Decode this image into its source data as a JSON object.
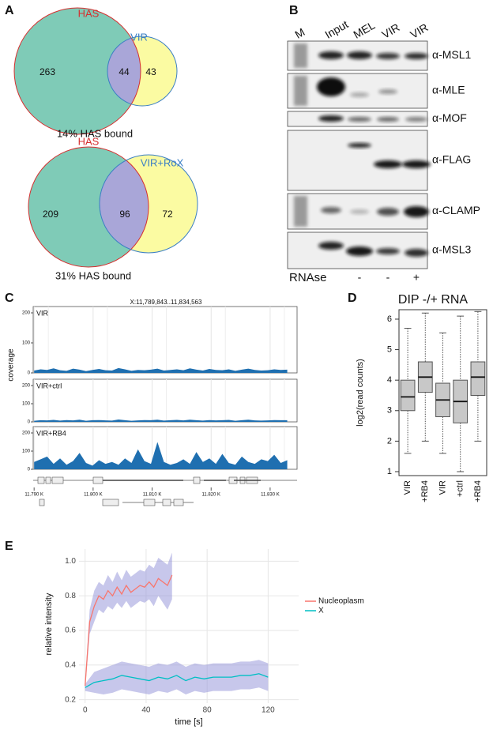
{
  "panel_a": {
    "label": "A",
    "venns": [
      {
        "set1": "HAS",
        "set2": "VIR",
        "only1": 263,
        "both": 44,
        "only2": 43,
        "caption": "14% HAS bound"
      },
      {
        "set1": "HAS",
        "set2": "VIR+RoX",
        "only1": 209,
        "both": 96,
        "only2": 72,
        "caption": "31% HAS bound"
      }
    ]
  },
  "panel_b": {
    "label": "B",
    "lanes": [
      "M",
      "Input",
      "MEL",
      "VIR",
      "VIR"
    ],
    "antibodies": [
      "α-MSL1",
      "α-MLE",
      "α-MOF",
      "α-FLAG",
      "α-CLAMP",
      "α-MSL3"
    ],
    "rnase_label": "RNAse",
    "rnase": [
      "-",
      "-",
      "+"
    ]
  },
  "chart_data": [
    {
      "type": "tracks",
      "label": "C",
      "title": "X:11,789,843..11,834,563",
      "ylabel": "coverage",
      "color": "#1f6fb0",
      "ylim": [
        0,
        200
      ],
      "yticks": [
        0,
        100,
        200
      ],
      "xlim": [
        11789843,
        11834563
      ],
      "xticks": [
        {
          "value": 11790000,
          "label": "11.790 K"
        },
        {
          "value": 11800000,
          "label": "11.800 K"
        },
        {
          "value": 11810000,
          "label": "11.810 K"
        },
        {
          "value": 11820000,
          "label": "11.820 K"
        },
        {
          "value": 11830000,
          "label": "11.830 K"
        }
      ],
      "x": [
        11790000,
        11791100,
        11792200,
        11793300,
        11794400,
        11795500,
        11796600,
        11797700,
        11798800,
        11799900,
        11801000,
        11802100,
        11803200,
        11804300,
        11805400,
        11806500,
        11807600,
        11808700,
        11809800,
        11810900,
        11812000,
        11813100,
        11814200,
        11815300,
        11816400,
        11817500,
        11818600,
        11819700,
        11820800,
        11821900,
        11823000,
        11824100,
        11825200,
        11826300,
        11827400,
        11828500,
        11829600,
        11830700,
        11831800,
        11832900
      ],
      "series": [
        {
          "name": "VIR",
          "values": [
            8,
            12,
            10,
            15,
            9,
            7,
            14,
            11,
            6,
            10,
            13,
            9,
            8,
            16,
            12,
            7,
            10,
            9,
            11,
            14,
            8,
            10,
            12,
            9,
            15,
            11,
            8,
            13,
            10,
            9,
            12,
            7,
            11,
            14,
            10,
            8,
            9,
            12,
            10,
            11
          ]
        },
        {
          "name": "VIR+ctrl",
          "values": [
            6,
            9,
            8,
            11,
            7,
            10,
            8,
            12,
            6,
            9,
            10,
            8,
            7,
            13,
            9,
            6,
            8,
            10,
            9,
            12,
            7,
            9,
            11,
            8,
            12,
            9,
            7,
            10,
            8,
            9,
            11,
            6,
            9,
            12,
            8,
            7,
            8,
            10,
            9,
            9
          ]
        },
        {
          "name": "VIR+RB4",
          "values": [
            40,
            55,
            70,
            30,
            60,
            25,
            45,
            90,
            35,
            20,
            50,
            30,
            40,
            25,
            60,
            35,
            110,
            45,
            30,
            150,
            40,
            25,
            35,
            55,
            30,
            95,
            40,
            60,
            30,
            85,
            35,
            25,
            70,
            40,
            30,
            55,
            45,
            80,
            35,
            50
          ]
        }
      ]
    },
    {
      "type": "box",
      "label": "D",
      "title": "DIP -/+ RNA",
      "ylabel": "log2(read counts)",
      "color": "#c8c8c8",
      "ylim": [
        0.87,
        6.31
      ],
      "yticks": [
        1,
        2,
        3,
        4,
        5,
        6
      ],
      "categories": [
        "VIR",
        "+RB4",
        "VIR",
        "+ctrl",
        "+RB4"
      ],
      "boxes": [
        {
          "min": 1.6,
          "q1": 3.0,
          "median": 3.45,
          "q3": 4.0,
          "max": 5.7
        },
        {
          "min": 2.0,
          "q1": 3.6,
          "median": 4.1,
          "q3": 4.6,
          "max": 6.2
        },
        {
          "min": 1.6,
          "q1": 2.8,
          "median": 3.35,
          "q3": 3.9,
          "max": 5.55
        },
        {
          "min": 1.0,
          "q1": 2.6,
          "median": 3.3,
          "q3": 4.0,
          "max": 6.1
        },
        {
          "min": 2.0,
          "q1": 3.5,
          "median": 4.1,
          "q3": 4.6,
          "max": 6.25
        }
      ]
    },
    {
      "type": "line",
      "label": "E",
      "xlabel": "time [s]",
      "ylabel": "relative intensity",
      "grid": true,
      "band_color": "#8f8fd8",
      "xlim": [
        -4,
        140
      ],
      "xticks": [
        0,
        40,
        80,
        120
      ],
      "ylim": [
        0.18,
        1.07
      ],
      "yticks": [
        0.2,
        0.4,
        0.6,
        0.8,
        {
          "value": 1,
          "label": "1.0"
        }
      ],
      "series": [
        {
          "name": "Nucleoplasm",
          "color": "#f8766d",
          "x": [
            0,
            3,
            6,
            9,
            12,
            15,
            18,
            21,
            24,
            27,
            30,
            33,
            36,
            39,
            42,
            45,
            48,
            51,
            54,
            57
          ],
          "values": [
            0.28,
            0.65,
            0.74,
            0.8,
            0.78,
            0.83,
            0.8,
            0.85,
            0.81,
            0.86,
            0.82,
            0.84,
            0.86,
            0.85,
            0.88,
            0.85,
            0.9,
            0.88,
            0.86,
            0.92
          ],
          "lower": [
            0.26,
            0.58,
            0.65,
            0.72,
            0.7,
            0.74,
            0.72,
            0.76,
            0.73,
            0.77,
            0.73,
            0.75,
            0.77,
            0.76,
            0.78,
            0.74,
            0.8,
            0.76,
            0.72,
            0.78
          ],
          "upper": [
            0.3,
            0.72,
            0.83,
            0.88,
            0.86,
            0.92,
            0.88,
            0.94,
            0.89,
            0.95,
            0.91,
            0.93,
            0.95,
            0.94,
            0.98,
            0.96,
            1.02,
            1.0,
            0.98,
            1.05
          ]
        },
        {
          "name": "X",
          "color": "#00bfc4",
          "x": [
            0,
            6,
            12,
            18,
            24,
            30,
            36,
            42,
            48,
            54,
            60,
            66,
            72,
            78,
            84,
            90,
            96,
            102,
            108,
            114,
            120
          ],
          "values": [
            0.27,
            0.3,
            0.31,
            0.32,
            0.34,
            0.33,
            0.32,
            0.31,
            0.33,
            0.32,
            0.34,
            0.31,
            0.33,
            0.32,
            0.33,
            0.33,
            0.33,
            0.34,
            0.34,
            0.35,
            0.33
          ],
          "lower": [
            0.25,
            0.24,
            0.23,
            0.24,
            0.26,
            0.25,
            0.24,
            0.23,
            0.25,
            0.24,
            0.26,
            0.23,
            0.25,
            0.24,
            0.25,
            0.25,
            0.25,
            0.26,
            0.26,
            0.27,
            0.25
          ],
          "upper": [
            0.29,
            0.36,
            0.38,
            0.4,
            0.42,
            0.41,
            0.4,
            0.39,
            0.41,
            0.4,
            0.42,
            0.39,
            0.41,
            0.4,
            0.41,
            0.41,
            0.41,
            0.42,
            0.42,
            0.43,
            0.41
          ]
        }
      ]
    }
  ]
}
